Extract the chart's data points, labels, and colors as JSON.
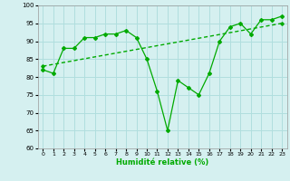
{
  "xlabel": "Humidité relative (%)",
  "ylabel": "",
  "bg_color": "#d5f0f0",
  "grid_color": "#b0dede",
  "line_color": "#00aa00",
  "xlim": [
    -0.5,
    23.5
  ],
  "ylim": [
    60,
    100
  ],
  "yticks": [
    60,
    65,
    70,
    75,
    80,
    85,
    90,
    95,
    100
  ],
  "xticks": [
    0,
    1,
    2,
    3,
    4,
    5,
    6,
    7,
    8,
    9,
    10,
    11,
    12,
    13,
    14,
    15,
    16,
    17,
    18,
    19,
    20,
    21,
    22,
    23
  ],
  "series1": [
    82,
    81,
    88,
    88,
    91,
    91,
    92,
    92,
    93,
    91,
    85,
    76,
    65,
    79,
    77,
    75,
    81,
    90,
    94,
    95,
    92,
    96,
    96,
    97
  ],
  "series2_x": [
    0,
    23
  ],
  "series2_y": [
    83,
    95
  ]
}
